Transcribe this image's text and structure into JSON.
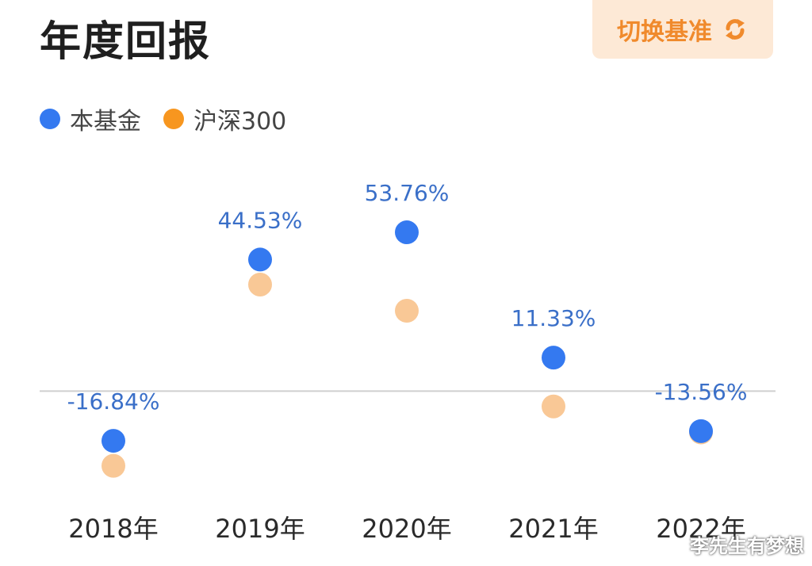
{
  "header": {
    "title": "年度回报",
    "switch_label": "切换基准"
  },
  "colors": {
    "fund": "#3479f0",
    "benchmark": "#f9c896",
    "benchmark_legend": "#f7961f",
    "label": "#3a6fc8",
    "baseline": "#cfcfcf",
    "accent": "#f08a2c"
  },
  "icons": {
    "switch": "refresh-icon"
  },
  "watermark": "李先生有梦想",
  "chart_data": {
    "type": "scatter",
    "title": "年度回报",
    "categories": [
      "2018年",
      "2019年",
      "2020年",
      "2021年",
      "2022年"
    ],
    "series": [
      {
        "name": "本基金",
        "values": [
          -16.84,
          44.53,
          53.76,
          11.33,
          -13.56
        ],
        "labels": [
          "-16.84%",
          "44.53%",
          "53.76%",
          "11.33%",
          "-13.56%"
        ]
      },
      {
        "name": "沪深300",
        "values": [
          -25.31,
          36.07,
          27.21,
          -5.2,
          -14.0
        ]
      }
    ],
    "ylim": [
      -34,
      68
    ],
    "baseline": 0,
    "legend": "top-left",
    "grid": false
  }
}
